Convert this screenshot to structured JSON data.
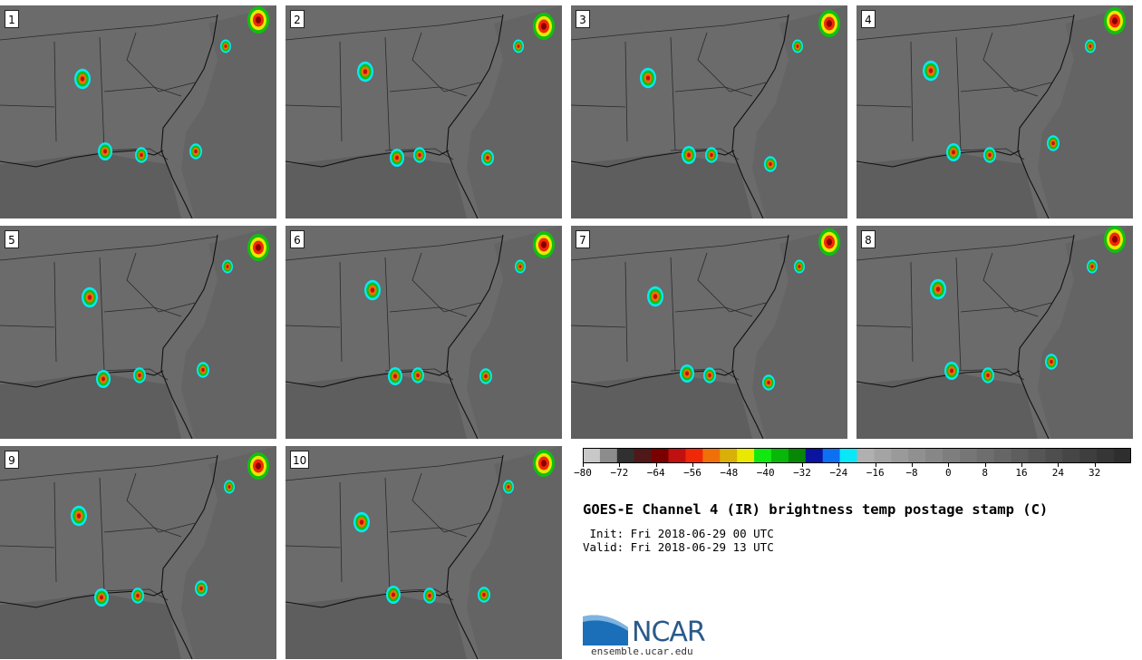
{
  "panels": [
    {
      "label": "1"
    },
    {
      "label": "2"
    },
    {
      "label": "3"
    },
    {
      "label": "4"
    },
    {
      "label": "5"
    },
    {
      "label": "6"
    },
    {
      "label": "7"
    },
    {
      "label": "8"
    },
    {
      "label": "9"
    },
    {
      "label": "10"
    }
  ],
  "colorbar": {
    "ticks": [
      "-80",
      "-72",
      "-64",
      "-56",
      "-48",
      "-40",
      "-32",
      "-24",
      "-16",
      "-8",
      "0",
      "8",
      "16",
      "24",
      "32"
    ],
    "min": -80,
    "max": 40,
    "colors": [
      "#c8c8c8",
      "#8c8c8c",
      "#303030",
      "#501818",
      "#7a0000",
      "#c01010",
      "#f02808",
      "#f07008",
      "#d8b008",
      "#e8e800",
      "#10e810",
      "#08b808",
      "#068806",
      "#0a14a0",
      "#0c70f0",
      "#08e8f8",
      "#b0b0b0",
      "#a4a4a4",
      "#9a9a9a",
      "#909090",
      "#878787",
      "#7e7e7e",
      "#767676",
      "#6e6e6e",
      "#666666",
      "#5e5e5e",
      "#565656",
      "#4e4e4e",
      "#464646",
      "#3e3e3e",
      "#363636",
      "#2e2e2e"
    ]
  },
  "title": "GOES-E Channel 4 (IR) brightness temp postage stamp (C)",
  "init": " Init: Fri 2018-06-29 00 UTC",
  "valid": "Valid: Fri 2018-06-29 13 UTC",
  "logo_text": "NCAR",
  "site": "ensemble.ucar.edu"
}
